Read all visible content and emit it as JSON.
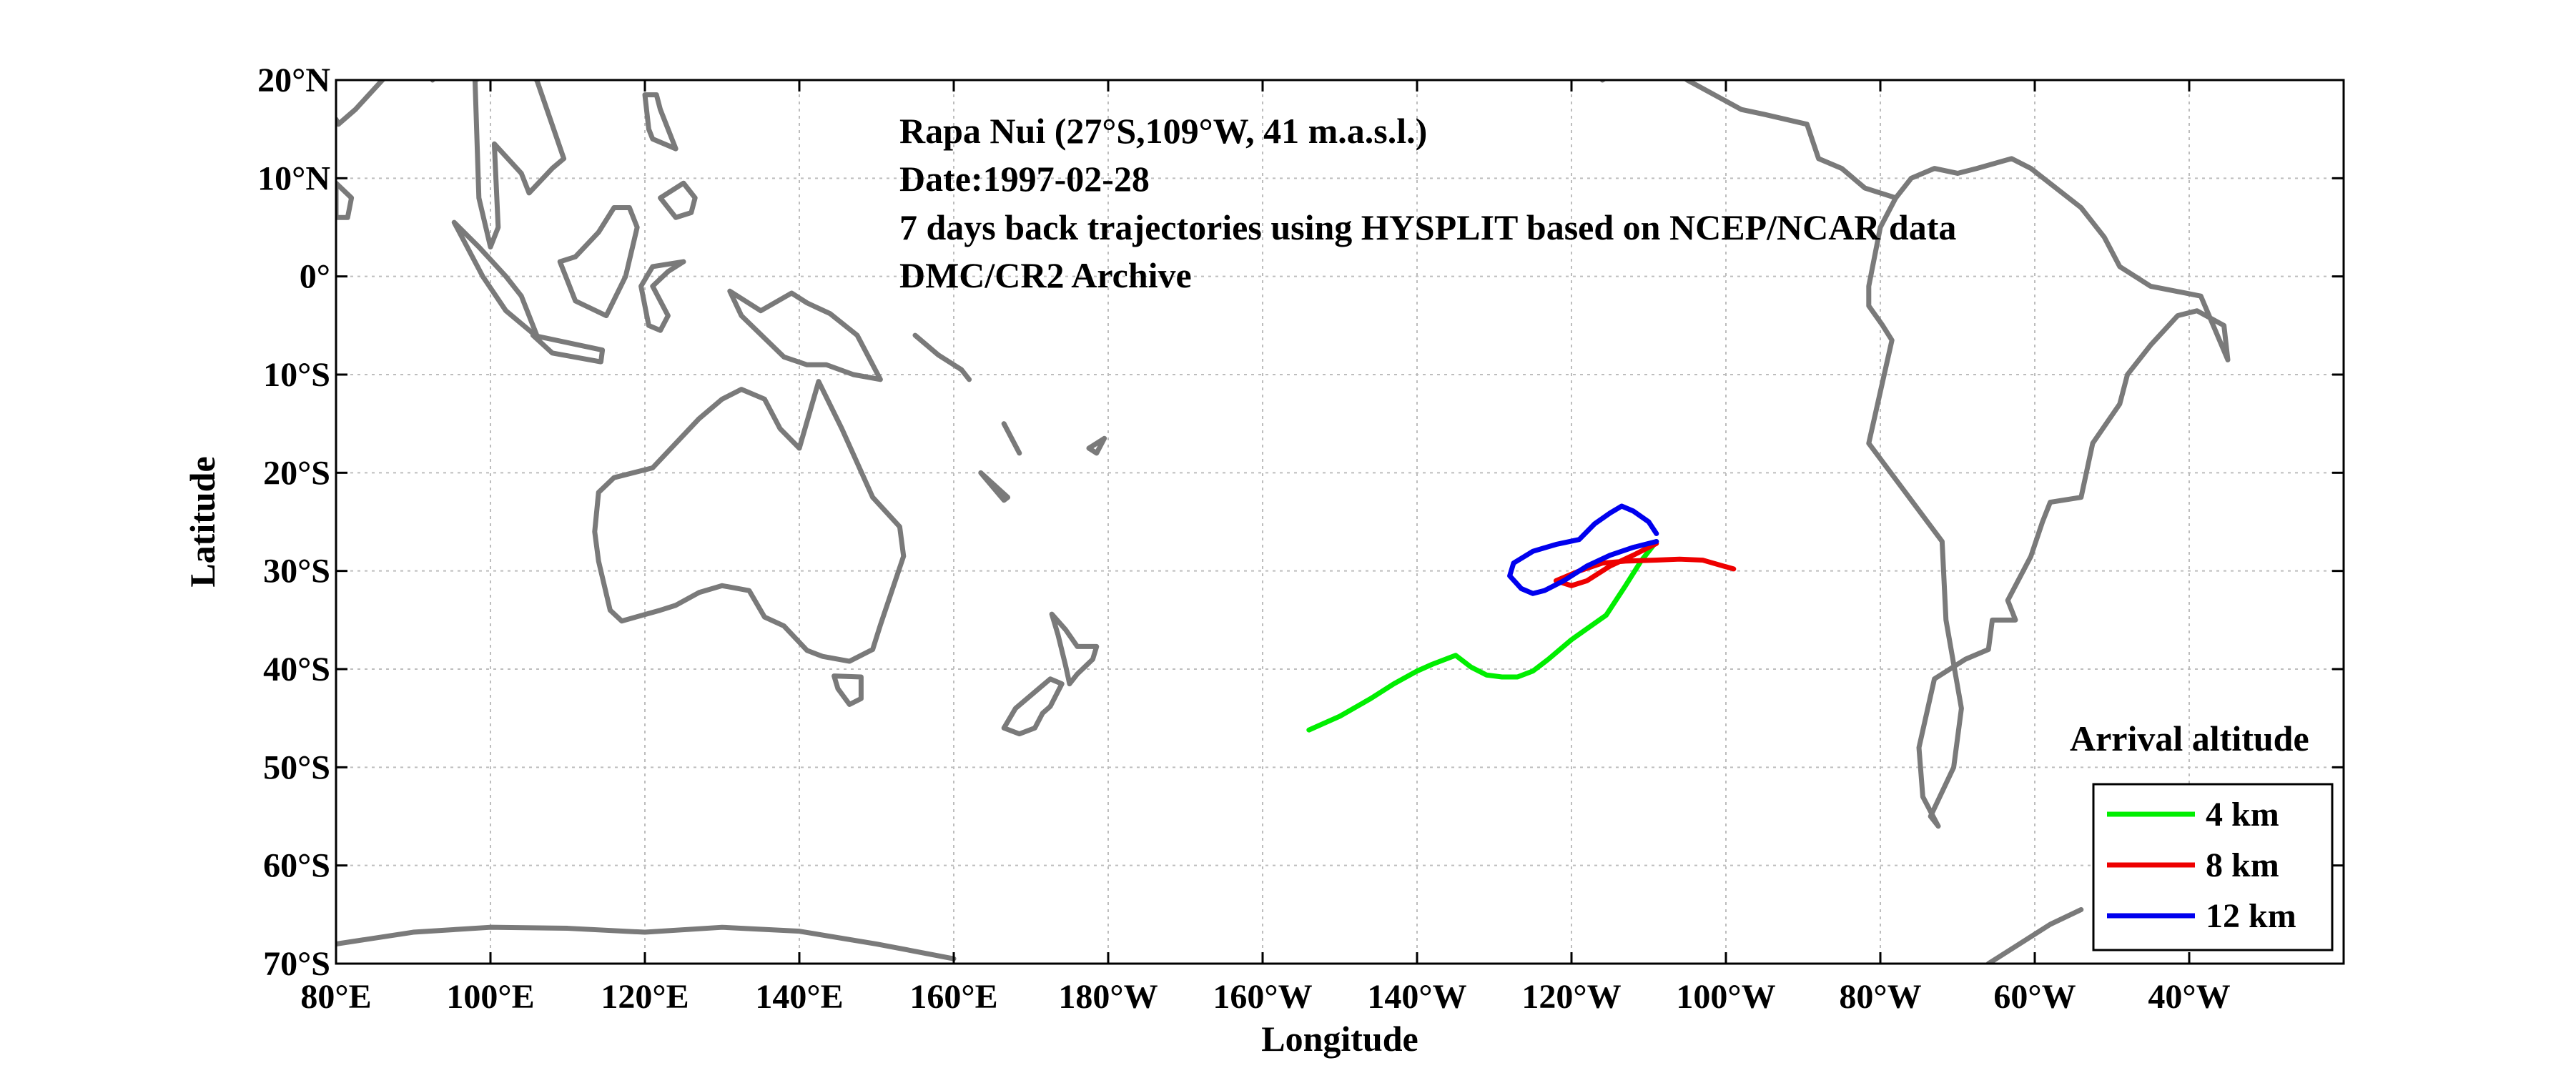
{
  "annotations": [
    "Rapa Nui (27°S,109°W, 41 m.a.s.l.)",
    "Date:1997-02-28",
    "7 days back trajectories using HYSPLIT based on NCEP/NCAR data",
    "DMC/CR2 Archive"
  ],
  "chart_data": {
    "type": "line",
    "xlabel": "Longitude",
    "ylabel": "Latitude",
    "xlim": [
      80,
      340
    ],
    "ylim": [
      -70,
      20
    ],
    "x_ticks": [
      {
        "value": 80,
        "label": "80°E"
      },
      {
        "value": 100,
        "label": "100°E"
      },
      {
        "value": 120,
        "label": "120°E"
      },
      {
        "value": 140,
        "label": "140°E"
      },
      {
        "value": 160,
        "label": "160°E"
      },
      {
        "value": 180,
        "label": "180°W"
      },
      {
        "value": 200,
        "label": "160°W"
      },
      {
        "value": 220,
        "label": "140°W"
      },
      {
        "value": 240,
        "label": "120°W"
      },
      {
        "value": 260,
        "label": "100°W"
      },
      {
        "value": 280,
        "label": "80°W"
      },
      {
        "value": 300,
        "label": "60°W"
      },
      {
        "value": 320,
        "label": "40°W"
      }
    ],
    "y_ticks": [
      {
        "value": 20,
        "label": "20°N"
      },
      {
        "value": 10,
        "label": "10°N"
      },
      {
        "value": 0,
        "label": "0°"
      },
      {
        "value": -10,
        "label": "10°S"
      },
      {
        "value": -20,
        "label": "20°S"
      },
      {
        "value": -30,
        "label": "30°S"
      },
      {
        "value": -40,
        "label": "40°S"
      },
      {
        "value": -50,
        "label": "50°S"
      },
      {
        "value": -60,
        "label": "60°S"
      },
      {
        "value": -70,
        "label": "70°S"
      }
    ],
    "grid": true,
    "legend": {
      "title": "Arrival altitude",
      "placement": "bottom-right"
    },
    "series": [
      {
        "name": "4 km",
        "color": "#00ee00",
        "x": [
          251,
          249,
          247,
          244.5,
          240,
          237,
          235,
          233,
          231,
          229,
          228,
          227,
          225,
          222,
          220,
          217,
          214,
          210,
          206
        ],
        "y": [
          -27,
          -29,
          -31.5,
          -34.5,
          -37,
          -39,
          -40.2,
          -40.8,
          -40.8,
          -40.6,
          -40.2,
          -39.8,
          -38.6,
          -39.5,
          -40.2,
          -41.5,
          -43,
          -44.8,
          -46.2
        ]
      },
      {
        "name": "8 km",
        "color": "#ee0000",
        "x": [
          251,
          248,
          245,
          242,
          240,
          238,
          241,
          244,
          247,
          251,
          254,
          257,
          261
        ],
        "y": [
          -27.2,
          -28.4,
          -29.5,
          -31,
          -31.5,
          -31,
          -30,
          -29.2,
          -29,
          -28.9,
          -28.8,
          -28.9,
          -29.8
        ]
      },
      {
        "name": "12 km",
        "color": "#0000ee",
        "x": [
          251,
          248,
          245,
          242,
          239,
          236.5,
          235,
          233.5,
          232,
          232.5,
          235,
          238,
          241,
          243,
          245,
          246.5,
          248,
          250,
          251
        ],
        "y": [
          -27,
          -27.6,
          -28.4,
          -29.5,
          -31,
          -32,
          -32.3,
          -31.8,
          -30.5,
          -29.2,
          -28,
          -27.3,
          -26.8,
          -25.2,
          -24.1,
          -23.4,
          -23.9,
          -25,
          -26.2
        ]
      }
    ]
  },
  "map": {
    "coastline_color": "#7a7a7a",
    "coastlines": [
      {
        "name": "south-america",
        "lon": [
          282,
          280,
          278.5,
          278.5,
          280.3,
          281.5,
          278.5,
          288,
          288.5,
          290.5,
          289.5,
          286.5,
          287.5,
          285.5,
          285,
          287,
          291,
          294,
          294.5,
          297.5,
          296.5,
          299.5,
          301,
          302,
          306,
          307.5,
          311,
          312,
          315,
          318.5,
          321,
          324.5,
          325,
          321.5,
          315,
          311,
          309,
          306,
          299.5,
          297,
          292.5,
          290,
          287,
          284,
          282
        ],
        "lat": [
          8,
          5,
          -1,
          -3,
          -5,
          -6.5,
          -17,
          -27,
          -35,
          -44,
          -50,
          -55,
          -56,
          -53,
          -48,
          -41,
          -39,
          -38,
          -35,
          -35,
          -33,
          -28.5,
          -25,
          -23,
          -22.5,
          -17,
          -13,
          -10,
          -7,
          -4,
          -3.5,
          -5,
          -8.5,
          -2,
          -1,
          1,
          4,
          7,
          11,
          12,
          11,
          10.5,
          11,
          10,
          8
        ]
      },
      {
        "name": "central-america",
        "lon": [
          282,
          278,
          275,
          272,
          270.5,
          265,
          262,
          255,
          249.5,
          246,
          244
        ],
        "lat": [
          8,
          9,
          11,
          12,
          15.5,
          16.5,
          17,
          20,
          23,
          21,
          20
        ]
      },
      {
        "name": "australia",
        "lon": [
          114,
          116,
          121,
          127,
          130,
          132.5,
          135.5,
          137.5,
          140,
          142.5,
          145.5,
          149.5,
          153,
          153.5,
          150.5,
          149.5,
          146.5,
          143,
          141,
          138,
          135.5,
          133.5,
          130,
          127,
          124,
          122,
          117,
          115.5,
          114,
          113.5,
          114
        ],
        "lat": [
          -22,
          -20.5,
          -19.5,
          -14.5,
          -12.5,
          -11.5,
          -12.5,
          -15.5,
          -17.5,
          -10.7,
          -15.5,
          -22.5,
          -25.5,
          -28.5,
          -35.5,
          -38,
          -39.2,
          -38.7,
          -38.1,
          -35.6,
          -34.7,
          -32,
          -31.5,
          -32.2,
          -33.5,
          -34,
          -35.1,
          -34,
          -29,
          -26,
          -22
        ]
      },
      {
        "name": "tasmania",
        "lon": [
          144.5,
          148,
          148,
          146.5,
          145,
          144.5
        ],
        "lat": [
          -40.7,
          -40.8,
          -43,
          -43.6,
          -42,
          -40.7
        ]
      },
      {
        "name": "new-zealand-north",
        "lon": [
          172.7,
          174.5,
          176,
          178.5,
          178,
          176,
          175,
          174.5,
          173.5,
          172.7
        ],
        "lat": [
          -34.4,
          -36,
          -37.7,
          -37.7,
          -39,
          -40.5,
          -41.5,
          -39.7,
          -36.5,
          -34.4
        ]
      },
      {
        "name": "new-zealand-south",
        "lon": [
          172.5,
          174,
          172.5,
          171.5,
          170.5,
          168.5,
          166.5,
          168,
          171,
          172.5
        ],
        "lat": [
          -41,
          -41.5,
          -43.8,
          -44.5,
          -46,
          -46.6,
          -46,
          -44,
          -42,
          -41
        ]
      },
      {
        "name": "antarctica",
        "lon": [
          80,
          90,
          100,
          110,
          120,
          130,
          140,
          150,
          160
        ],
        "lat": [
          -68,
          -66.8,
          -66.3,
          -66.4,
          -66.8,
          -66.3,
          -66.7,
          -68,
          -69.5
        ]
      },
      {
        "name": "antarctic-peninsula",
        "lon": [
          294,
          298,
          302,
          306
        ],
        "lat": [
          -70,
          -68,
          -66,
          -64.5
        ]
      },
      {
        "name": "borneo",
        "lon": [
          109,
          111,
          115,
          117.5,
          119,
          118,
          116,
          114,
          111,
          109
        ],
        "lat": [
          1.5,
          -2.5,
          -4,
          0,
          5,
          7,
          7,
          4.5,
          2,
          1.5
        ]
      },
      {
        "name": "sumatra",
        "lon": [
          95.3,
          98.5,
          102,
          104,
          106,
          105.5,
          102,
          99,
          95.3
        ],
        "lat": [
          5.5,
          3,
          0,
          -2,
          -6,
          -5.8,
          -3.5,
          0,
          5.5
        ]
      },
      {
        "name": "java",
        "lon": [
          105.5,
          114.5,
          114.3,
          108,
          105.5
        ],
        "lat": [
          -6,
          -7.5,
          -8.7,
          -7.8,
          -6
        ]
      },
      {
        "name": "new-guinea",
        "lon": [
          131,
          135,
          139,
          141,
          144,
          147.5,
          150.5,
          147,
          143.5,
          141,
          138,
          132.5,
          131
        ],
        "lat": [
          -1.5,
          -3.5,
          -1.7,
          -2.7,
          -3.8,
          -6,
          -10.5,
          -10,
          -9,
          -9,
          -8.2,
          -4,
          -1.5
        ]
      },
      {
        "name": "sulawesi",
        "lon": [
          119.5,
          121,
          125,
          123,
          121,
          123,
          122,
          120.5,
          119.5
        ],
        "lat": [
          -1,
          1,
          1.5,
          0.5,
          -1,
          -4,
          -5.5,
          -5,
          -1
        ]
      },
      {
        "name": "indochina",
        "lon": [
          98,
          103,
          106,
          109.5,
          108,
          105,
          104,
          100.5,
          101,
          100,
          98.5,
          98
        ],
        "lat": [
          20,
          21.5,
          20,
          12,
          11,
          8.5,
          10.5,
          13.5,
          5,
          3,
          8,
          20
        ]
      },
      {
        "name": "india",
        "lon": [
          80,
          80.3,
          82.5,
          86,
          89,
          91.5,
          92.5
        ],
        "lat": [
          16,
          15.5,
          17,
          20,
          22,
          22.5,
          20
        ]
      },
      {
        "name": "sri-lanka",
        "lon": [
          80,
          82,
          81.5,
          80,
          80
        ],
        "lat": [
          9.5,
          8,
          6,
          6,
          9.5
        ]
      },
      {
        "name": "philippines-luzon",
        "lon": [
          120,
          121.5,
          122,
          124,
          121,
          120.5,
          120
        ],
        "lat": [
          18.5,
          18.5,
          17,
          13,
          14,
          15,
          18.5
        ]
      },
      {
        "name": "mindanao",
        "lon": [
          122,
          125,
          126.5,
          126,
          124,
          122
        ],
        "lat": [
          8,
          9.5,
          8,
          6.5,
          6,
          8
        ]
      },
      {
        "name": "taiwan",
        "lon": [
          121,
          122,
          120.7,
          121
        ],
        "lat": [
          25,
          24,
          22,
          25
        ]
      },
      {
        "name": "china-coast",
        "lon": [
          110,
          113,
          117,
          120,
          121.5
        ],
        "lat": [
          20.5,
          22.5,
          23.5,
          26.5,
          28
        ]
      },
      {
        "name": "baja-california",
        "lon": [
          245.5,
          249.5,
          247.5,
          245.5
        ],
        "lat": [
          32,
          23,
          25,
          32
        ]
      },
      {
        "name": "solomon-islands",
        "lon": [
          155,
          158,
          161,
          162
        ],
        "lat": [
          -6,
          -8,
          -9.5,
          -10.5
        ]
      },
      {
        "name": "vanuatu",
        "lon": [
          166.5,
          167.5,
          168.5
        ],
        "lat": [
          -15,
          -16.5,
          -18
        ]
      },
      {
        "name": "new-caledonia",
        "lon": [
          163.5,
          167,
          166.5,
          163.5
        ],
        "lat": [
          -20,
          -22.5,
          -22.8,
          -20
        ]
      },
      {
        "name": "fiji",
        "lon": [
          177.5,
          179.5,
          178.5,
          177.5
        ],
        "lat": [
          -17.5,
          -16.5,
          -18,
          -17.5
        ]
      }
    ]
  }
}
